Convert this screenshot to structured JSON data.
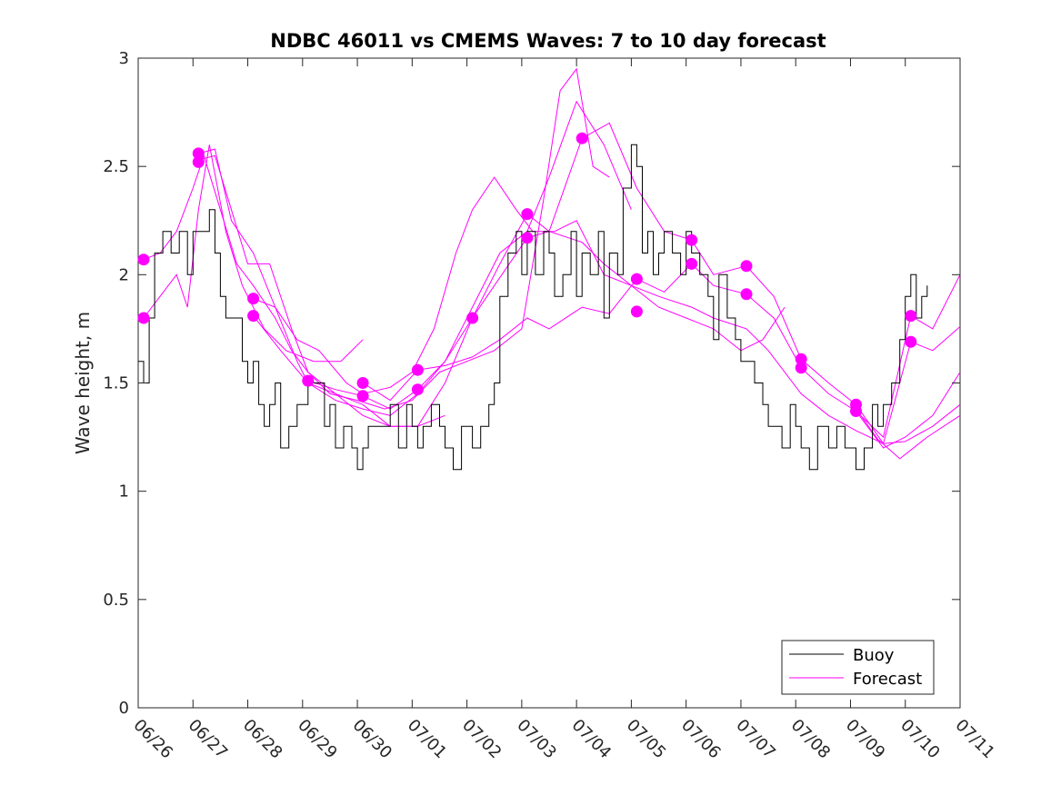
{
  "chart_data": {
    "type": "line",
    "title": "NDBC 46011 vs CMEMS Waves: 7 to 10 day forecast",
    "xlabel": "",
    "ylabel": "Wave height, m",
    "xlim": [
      "06/26",
      "07/11"
    ],
    "ylim": [
      0,
      3
    ],
    "x_tick_labels": [
      "06/26",
      "06/27",
      "06/28",
      "06/29",
      "06/30",
      "07/01",
      "07/02",
      "07/03",
      "07/04",
      "07/05",
      "07/06",
      "07/07",
      "07/08",
      "07/09",
      "07/10",
      "07/11"
    ],
    "y_ticks": [
      0,
      0.5,
      1,
      1.5,
      2,
      2.5,
      3
    ],
    "y_tick_labels": [
      "0",
      "0.5",
      "1",
      "1.5",
      "2",
      "2.5",
      "3"
    ],
    "x_unit": "days since 06/26 00:00",
    "grid": false,
    "legend": {
      "placement": "bottom-right",
      "entries": [
        "Buoy",
        "Forecast"
      ]
    },
    "colors": {
      "buoy": "#000000",
      "forecast": "#ff00ff",
      "axis": "#262626"
    },
    "buoy": {
      "name": "Buoy",
      "x": [
        0,
        0.1,
        0.2,
        0.3,
        0.45,
        0.6,
        0.75,
        0.9,
        1.0,
        1.1,
        1.2,
        1.3,
        1.4,
        1.5,
        1.6,
        1.75,
        1.9,
        2.0,
        2.1,
        2.2,
        2.3,
        2.4,
        2.5,
        2.6,
        2.75,
        2.9,
        3.0,
        3.1,
        3.25,
        3.4,
        3.5,
        3.6,
        3.75,
        3.9,
        4.0,
        4.1,
        4.2,
        4.35,
        4.5,
        4.6,
        4.75,
        4.9,
        5.0,
        5.1,
        5.2,
        5.35,
        5.5,
        5.6,
        5.75,
        5.9,
        6.0,
        6.1,
        6.25,
        6.4,
        6.5,
        6.6,
        6.75,
        6.9,
        7.0,
        7.1,
        7.25,
        7.4,
        7.5,
        7.6,
        7.75,
        7.9,
        8.0,
        8.1,
        8.25,
        8.4,
        8.5,
        8.6,
        8.75,
        8.85,
        9.0,
        9.1,
        9.2,
        9.3,
        9.4,
        9.5,
        9.6,
        9.75,
        9.9,
        10.0,
        10.1,
        10.25,
        10.4,
        10.5,
        10.6,
        10.75,
        10.9,
        11.0,
        11.1,
        11.25,
        11.4,
        11.5,
        11.6,
        11.75,
        11.9,
        12.0,
        12.1,
        12.25,
        12.4,
        12.5,
        12.6,
        12.75,
        12.9,
        13.0,
        13.1,
        13.25,
        13.4,
        13.5,
        13.6,
        13.75,
        13.9,
        14.0,
        14.1,
        14.2,
        14.3,
        14.4
      ],
      "y": [
        1.6,
        1.5,
        1.8,
        2.1,
        2.2,
        2.1,
        2.2,
        2.0,
        2.2,
        2.2,
        2.2,
        2.3,
        2.1,
        1.9,
        1.8,
        1.8,
        1.6,
        1.5,
        1.6,
        1.4,
        1.3,
        1.4,
        1.5,
        1.2,
        1.3,
        1.4,
        1.4,
        1.5,
        1.5,
        1.3,
        1.4,
        1.2,
        1.3,
        1.2,
        1.1,
        1.2,
        1.3,
        1.3,
        1.3,
        1.4,
        1.2,
        1.4,
        1.3,
        1.2,
        1.3,
        1.4,
        1.3,
        1.2,
        1.1,
        1.3,
        1.3,
        1.2,
        1.3,
        1.4,
        1.5,
        1.9,
        2.1,
        2.2,
        2.0,
        2.2,
        2.0,
        2.2,
        2.1,
        1.9,
        2.0,
        2.2,
        1.9,
        2.1,
        2.0,
        2.2,
        1.8,
        2.1,
        2.0,
        2.4,
        2.6,
        2.5,
        2.1,
        2.2,
        2.0,
        2.1,
        2.2,
        2.1,
        2.0,
        2.2,
        2.1,
        2.0,
        1.9,
        1.7,
        2.0,
        1.8,
        1.7,
        1.6,
        1.6,
        1.5,
        1.4,
        1.3,
        1.3,
        1.2,
        1.4,
        1.3,
        1.2,
        1.1,
        1.3,
        1.3,
        1.2,
        1.3,
        1.2,
        1.2,
        1.1,
        1.2,
        1.4,
        1.3,
        1.4,
        1.5,
        1.7,
        1.9,
        2.0,
        1.8,
        1.9,
        1.95
      ]
    },
    "forecast_series": [
      {
        "x": [
          0.1,
          0.4,
          0.7,
          0.9,
          1.1,
          1.3,
          1.6,
          1.9,
          2.3,
          2.7,
          3.2,
          3.7,
          4.1
        ],
        "y": [
          1.8,
          1.9,
          2.0,
          1.85,
          2.3,
          2.6,
          2.2,
          1.95,
          1.75,
          1.65,
          1.6,
          1.6,
          1.7
        ]
      },
      {
        "x": [
          0.1,
          0.4,
          0.7,
          1.0,
          1.2,
          1.5,
          1.8,
          2.1,
          2.5,
          2.8,
          3.1,
          3.6,
          4.1,
          4.6,
          5.1,
          5.6
        ],
        "y": [
          2.07,
          2.1,
          2.2,
          2.4,
          2.55,
          2.3,
          2.05,
          1.95,
          1.8,
          1.65,
          1.55,
          1.45,
          1.35,
          1.3,
          1.3,
          1.35
        ]
      },
      {
        "x": [
          1.1,
          1.4,
          1.7,
          2.0,
          2.4,
          2.8,
          3.1,
          3.5,
          4.0,
          4.5,
          5.0,
          5.5,
          6.0,
          6.5,
          7.0,
          7.4,
          7.7,
          8.0,
          8.3,
          8.6
        ],
        "y": [
          2.53,
          2.55,
          2.3,
          2.05,
          2.05,
          1.75,
          1.55,
          1.45,
          1.42,
          1.38,
          1.42,
          1.55,
          1.6,
          1.65,
          1.75,
          2.35,
          2.85,
          2.95,
          2.5,
          2.45
        ]
      },
      {
        "x": [
          1.1,
          1.4,
          1.7,
          2.1,
          2.5,
          2.9,
          3.1,
          3.6,
          4.1,
          4.6,
          5.1,
          5.6,
          6.1,
          6.6,
          7.1,
          7.5,
          8.0,
          8.5,
          9.0
        ],
        "y": [
          2.56,
          2.58,
          2.25,
          2.1,
          1.85,
          1.6,
          1.5,
          1.42,
          1.38,
          1.35,
          1.45,
          1.6,
          1.85,
          2.1,
          2.2,
          2.45,
          2.8,
          2.6,
          2.3
        ]
      },
      {
        "x": [
          2.1,
          2.5,
          2.9,
          3.3,
          3.8,
          4.1,
          4.6,
          5.0,
          5.4,
          5.8,
          6.1,
          6.5,
          6.9,
          7.2,
          7.6,
          8.0,
          8.5,
          9.0,
          9.5,
          10.0,
          10.5,
          11.0,
          11.4,
          11.8
        ],
        "y": [
          1.89,
          1.85,
          1.7,
          1.65,
          1.5,
          1.45,
          1.48,
          1.55,
          1.75,
          2.1,
          2.3,
          2.45,
          2.3,
          2.2,
          2.2,
          2.25,
          2.0,
          1.95,
          1.85,
          1.8,
          1.75,
          1.65,
          1.7,
          1.85
        ]
      },
      {
        "x": [
          2.1,
          2.6,
          3.1,
          3.6,
          4.1,
          4.6,
          5.1,
          5.6,
          6.1,
          6.5,
          7.1,
          7.5,
          8.1,
          8.5,
          9.0,
          9.5,
          10.1,
          10.5,
          11.1,
          11.5,
          12.1,
          12.6,
          13.1,
          13.6,
          14.0,
          14.5,
          15.0
        ],
        "y": [
          1.81,
          1.65,
          1.5,
          1.45,
          1.4,
          1.3,
          1.3,
          1.5,
          1.8,
          1.95,
          2.17,
          2.2,
          2.15,
          2.05,
          1.95,
          1.9,
          1.85,
          1.8,
          1.75,
          1.65,
          1.45,
          1.35,
          1.28,
          1.22,
          1.23,
          1.3,
          1.4
        ]
      },
      {
        "x": [
          3.1,
          3.6,
          4.1,
          4.6,
          5.1,
          5.6,
          6.1,
          6.6,
          7.1,
          7.5,
          8.1,
          8.6,
          9.1,
          9.6,
          10.1,
          10.5,
          11.1,
          11.6,
          12.1,
          12.6,
          13.1,
          13.6,
          14.1,
          14.5,
          15.0
        ],
        "y": [
          1.51,
          1.47,
          1.44,
          1.38,
          1.47,
          1.6,
          1.8,
          2.05,
          2.28,
          2.2,
          2.63,
          2.7,
          2.4,
          2.2,
          2.16,
          2.0,
          2.04,
          1.9,
          1.61,
          1.5,
          1.4,
          1.22,
          1.69,
          1.65,
          1.76
        ]
      },
      {
        "x": [
          4.1,
          4.6,
          5.1,
          5.6,
          6.1,
          6.6,
          7.1,
          7.5,
          8.1,
          8.6,
          9.1,
          9.6,
          10.1,
          10.5,
          11.1,
          11.6,
          12.1,
          12.6,
          13.1,
          13.6,
          14.1,
          14.5,
          15.0
        ],
        "y": [
          1.5,
          1.42,
          1.56,
          1.58,
          1.62,
          1.7,
          1.8,
          1.75,
          1.85,
          1.82,
          1.98,
          1.92,
          2.05,
          1.95,
          1.91,
          1.8,
          1.57,
          1.45,
          1.37,
          1.25,
          1.81,
          1.75,
          2.0
        ]
      },
      {
        "x": [
          13.1,
          13.6,
          14.0,
          14.5,
          15.0
        ],
        "y": [
          1.37,
          1.2,
          1.25,
          1.35,
          1.55
        ]
      },
      {
        "x": [
          13.1,
          13.5,
          13.9,
          14.4,
          15.0
        ],
        "y": [
          1.38,
          1.24,
          1.15,
          1.25,
          1.35
        ]
      }
    ],
    "forecast_markers": {
      "x": [
        0.1,
        0.1,
        1.1,
        1.1,
        2.1,
        2.1,
        3.1,
        4.1,
        4.1,
        5.1,
        5.1,
        6.1,
        7.1,
        7.1,
        8.1,
        9.1,
        9.1,
        10.1,
        10.1,
        11.1,
        11.1,
        12.1,
        12.1,
        13.1,
        13.1,
        14.1,
        14.1
      ],
      "y": [
        2.07,
        1.8,
        2.56,
        2.52,
        1.89,
        1.81,
        1.51,
        1.5,
        1.44,
        1.56,
        1.47,
        1.8,
        2.28,
        2.17,
        2.63,
        1.98,
        1.83,
        2.16,
        2.05,
        2.04,
        1.91,
        1.61,
        1.57,
        1.4,
        1.37,
        1.81,
        1.69
      ]
    }
  }
}
